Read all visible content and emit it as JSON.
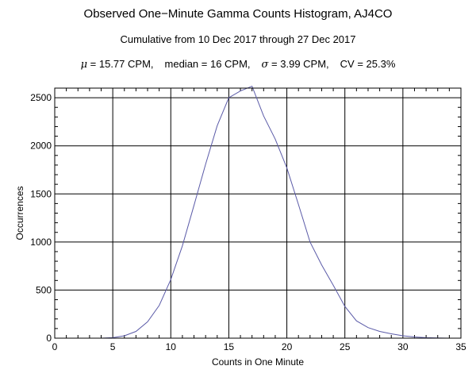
{
  "chart_data": {
    "type": "line",
    "title": "Observed One−Minute Gamma Counts Histogram, AJ4CO",
    "subtitle": "Cumulative from 10 Dec 2017 through 27 Dec 2017",
    "stats": {
      "mu_symbol": "μ",
      "mean": "= 15.77 CPM,",
      "median": "median = 16 CPM,",
      "sigma_symbol": "σ",
      "sd": "= 3.99 CPM,",
      "cv": "CV = 25.3%"
    },
    "xlabel": "Counts in One Minute",
    "ylabel": "Occurrences",
    "xlim": [
      0,
      35
    ],
    "ylim": [
      0,
      2600
    ],
    "xticks": [
      0,
      5,
      10,
      15,
      20,
      25,
      30,
      35
    ],
    "yticks": [
      0,
      500,
      1000,
      1500,
      2000,
      2500
    ],
    "grid": true,
    "line_color": "#5b5ba8",
    "x": [
      4,
      5,
      6,
      7,
      8,
      9,
      10,
      11,
      12,
      13,
      14,
      15,
      16,
      17,
      18,
      19,
      20,
      21,
      22,
      23,
      24,
      25,
      26,
      27,
      28,
      29,
      30,
      31,
      32,
      33,
      34
    ],
    "y": [
      0,
      5,
      25,
      70,
      170,
      340,
      610,
      960,
      1380,
      1810,
      2210,
      2500,
      2570,
      2620,
      2310,
      2070,
      1770,
      1390,
      1000,
      760,
      550,
      330,
      180,
      110,
      70,
      45,
      25,
      12,
      5,
      2,
      0
    ]
  }
}
